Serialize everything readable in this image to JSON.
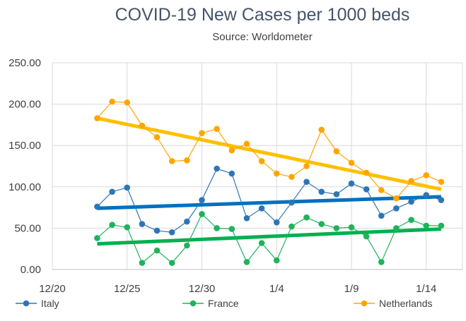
{
  "chart_data": {
    "type": "line",
    "title": "COVID-19 New Cases per 1000 beds",
    "subtitle": "Source: Worldometer",
    "xlabel": "",
    "ylabel": "",
    "ylim": [
      0,
      250
    ],
    "x_ticks": [
      "12/20",
      "12/25",
      "12/30",
      "1/4",
      "1/9",
      "1/14"
    ],
    "y_ticks": [
      "0.00",
      "50.00",
      "100.00",
      "150.00",
      "200.00",
      "250.00"
    ],
    "x": [
      "12/23",
      "12/24",
      "12/25",
      "12/26",
      "12/27",
      "12/28",
      "12/29",
      "12/30",
      "12/31",
      "1/1",
      "1/2",
      "1/3",
      "1/4",
      "1/5",
      "1/6",
      "1/7",
      "1/8",
      "1/9",
      "1/10",
      "1/11",
      "1/12",
      "1/13",
      "1/14",
      "1/15"
    ],
    "grid": "vertical and horizontal",
    "legend_position": "bottom",
    "series": [
      {
        "name": "Italy",
        "color": "#2E75B6",
        "trend_color": "#0070C0",
        "values": [
          76,
          94,
          99,
          55,
          47,
          45,
          58,
          84,
          122,
          116,
          62,
          74,
          57,
          81,
          106,
          94,
          91,
          104,
          97,
          65,
          74,
          82,
          90,
          84
        ]
      },
      {
        "name": "France",
        "color": "#1FB35A",
        "trend_color": "#00B050",
        "values": [
          38,
          54,
          51,
          8,
          23,
          8,
          29,
          67,
          50,
          49,
          9,
          32,
          11,
          52,
          63,
          55,
          50,
          51,
          40,
          9,
          50,
          60,
          53,
          53
        ]
      },
      {
        "name": "Netherlands",
        "color": "#FFA500",
        "trend_color": "#FFC000",
        "values": [
          183,
          203,
          202,
          174,
          160,
          131,
          132,
          165,
          170,
          144,
          152,
          131,
          116,
          112,
          125,
          169,
          143,
          129,
          117,
          96,
          86,
          107,
          114,
          106
        ]
      }
    ],
    "trendlines": [
      {
        "series": "Italy",
        "start": 74,
        "end": 88
      },
      {
        "series": "France",
        "start": 31,
        "end": 49
      },
      {
        "series": "Netherlands",
        "start": 183,
        "end": 97
      }
    ]
  }
}
